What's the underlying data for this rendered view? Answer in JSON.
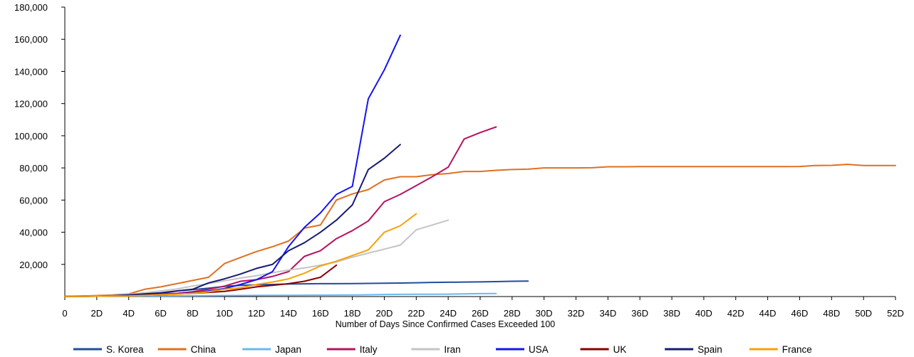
{
  "chart_data": {
    "type": "line",
    "xlabel": "Number of Days Since Confirmed Cases Exceeded 100",
    "ylabel": "",
    "xlim": [
      0,
      52
    ],
    "ylim": [
      0,
      180000
    ],
    "x_ticks": [
      "0",
      "2D",
      "4D",
      "6D",
      "8D",
      "10D",
      "12D",
      "14D",
      "16D",
      "18D",
      "20D",
      "22D",
      "24D",
      "26D",
      "28D",
      "30D",
      "32D",
      "34D",
      "36D",
      "38D",
      "40D",
      "42D",
      "44D",
      "46D",
      "48D",
      "50D",
      "52D"
    ],
    "y_ticks": [
      "20,000",
      "40,000",
      "60,000",
      "80,000",
      "100,000",
      "120,000",
      "140,000",
      "160,000",
      "180,000"
    ],
    "y_tick_values": [
      20000,
      40000,
      60000,
      80000,
      100000,
      120000,
      140000,
      160000,
      180000
    ],
    "grid": false,
    "legend_position": "bottom",
    "series": [
      {
        "name": "S. Korea",
        "color": "#1f4e9c",
        "values": [
          [
            0,
            100
          ],
          [
            1,
            200
          ],
          [
            2,
            350
          ],
          [
            3,
            600
          ],
          [
            4,
            900
          ],
          [
            5,
            1200
          ],
          [
            6,
            2000
          ],
          [
            7,
            3500
          ],
          [
            8,
            4300
          ],
          [
            9,
            5200
          ],
          [
            10,
            6300
          ],
          [
            11,
            7000
          ],
          [
            12,
            7300
          ],
          [
            13,
            7500
          ],
          [
            14,
            7800
          ],
          [
            15,
            7900
          ],
          [
            16,
            8000
          ],
          [
            17,
            8000
          ],
          [
            18,
            8100
          ],
          [
            19,
            8200
          ],
          [
            20,
            8300
          ],
          [
            21,
            8400
          ],
          [
            22,
            8600
          ],
          [
            23,
            8800
          ],
          [
            24,
            8900
          ],
          [
            25,
            9000
          ],
          [
            26,
            9100
          ],
          [
            27,
            9300
          ],
          [
            28,
            9500
          ],
          [
            29,
            9600
          ]
        ]
      },
      {
        "name": "China",
        "color": "#e07020",
        "values": [
          [
            0,
            100
          ],
          [
            1,
            300
          ],
          [
            2,
            600
          ],
          [
            3,
            1000
          ],
          [
            4,
            1700
          ],
          [
            5,
            4500
          ],
          [
            6,
            6000
          ],
          [
            7,
            8000
          ],
          [
            8,
            10000
          ],
          [
            9,
            12000
          ],
          [
            10,
            20500
          ],
          [
            11,
            24300
          ],
          [
            12,
            28000
          ],
          [
            13,
            31000
          ],
          [
            14,
            34500
          ],
          [
            15,
            42500
          ],
          [
            16,
            44500
          ],
          [
            17,
            60000
          ],
          [
            18,
            63800
          ],
          [
            19,
            66500
          ],
          [
            20,
            72500
          ],
          [
            21,
            74500
          ],
          [
            22,
            74500
          ],
          [
            23,
            75800
          ],
          [
            24,
            76500
          ],
          [
            25,
            77800
          ],
          [
            26,
            77800
          ],
          [
            27,
            78500
          ],
          [
            28,
            79000
          ],
          [
            29,
            79200
          ],
          [
            30,
            80000
          ],
          [
            31,
            80000
          ],
          [
            32,
            80000
          ],
          [
            33,
            80100
          ],
          [
            34,
            80700
          ],
          [
            35,
            80700
          ],
          [
            36,
            80800
          ],
          [
            37,
            80800
          ],
          [
            38,
            80800
          ],
          [
            39,
            80800
          ],
          [
            40,
            80800
          ],
          [
            41,
            80800
          ],
          [
            42,
            80800
          ],
          [
            43,
            80800
          ],
          [
            44,
            80800
          ],
          [
            45,
            80800
          ],
          [
            46,
            80900
          ],
          [
            47,
            81500
          ],
          [
            48,
            81600
          ],
          [
            49,
            82200
          ],
          [
            50,
            81500
          ],
          [
            51,
            81500
          ],
          [
            52,
            81500
          ]
        ]
      },
      {
        "name": "Japan",
        "color": "#6bb8f0",
        "values": [
          [
            0,
            100
          ],
          [
            2,
            200
          ],
          [
            4,
            300
          ],
          [
            6,
            400
          ],
          [
            8,
            500
          ],
          [
            10,
            600
          ],
          [
            12,
            700
          ],
          [
            14,
            800
          ],
          [
            16,
            900
          ],
          [
            18,
            1000
          ],
          [
            19,
            1100
          ],
          [
            20,
            1300
          ],
          [
            21,
            1350
          ],
          [
            22,
            1400
          ],
          [
            23,
            1450
          ],
          [
            24,
            1500
          ],
          [
            25,
            1700
          ],
          [
            26,
            1800
          ],
          [
            27,
            1900
          ]
        ]
      },
      {
        "name": "Italy",
        "color": "#b5135f",
        "values": [
          [
            0,
            100
          ],
          [
            1,
            150
          ],
          [
            2,
            300
          ],
          [
            3,
            500
          ],
          [
            4,
            800
          ],
          [
            5,
            1100
          ],
          [
            6,
            1700
          ],
          [
            7,
            2000
          ],
          [
            8,
            3000
          ],
          [
            9,
            4500
          ],
          [
            10,
            6500
          ],
          [
            11,
            9500
          ],
          [
            12,
            10500
          ],
          [
            13,
            12500
          ],
          [
            14,
            15500
          ],
          [
            15,
            25000
          ],
          [
            16,
            28500
          ],
          [
            17,
            36000
          ],
          [
            18,
            41000
          ],
          [
            19,
            47000
          ],
          [
            20,
            59000
          ],
          [
            21,
            63500
          ],
          [
            22,
            69000
          ],
          [
            23,
            74500
          ],
          [
            24,
            80500
          ],
          [
            25,
            98000
          ],
          [
            26,
            102000
          ],
          [
            27,
            105500
          ]
        ]
      },
      {
        "name": "Iran",
        "color": "#c4c4c4",
        "values": [
          [
            0,
            100
          ],
          [
            1,
            200
          ],
          [
            2,
            400
          ],
          [
            3,
            600
          ],
          [
            4,
            1500
          ],
          [
            5,
            2300
          ],
          [
            6,
            3500
          ],
          [
            7,
            4700
          ],
          [
            8,
            6500
          ],
          [
            9,
            8000
          ],
          [
            10,
            9800
          ],
          [
            11,
            11500
          ],
          [
            12,
            13000
          ],
          [
            13,
            14800
          ],
          [
            14,
            16500
          ],
          [
            15,
            17800
          ],
          [
            16,
            19500
          ],
          [
            17,
            21500
          ],
          [
            18,
            24500
          ],
          [
            19,
            27000
          ],
          [
            20,
            29500
          ],
          [
            21,
            32000
          ],
          [
            22,
            41500
          ],
          [
            23,
            44500
          ],
          [
            24,
            47500
          ]
        ]
      },
      {
        "name": "USA",
        "color": "#1414f0",
        "values": [
          [
            0,
            100
          ],
          [
            1,
            150
          ],
          [
            2,
            200
          ],
          [
            3,
            250
          ],
          [
            4,
            450
          ],
          [
            5,
            750
          ],
          [
            6,
            1000
          ],
          [
            7,
            1700
          ],
          [
            8,
            2200
          ],
          [
            9,
            3500
          ],
          [
            10,
            5000
          ],
          [
            11,
            7500
          ],
          [
            12,
            10500
          ],
          [
            13,
            15500
          ],
          [
            14,
            31000
          ],
          [
            15,
            43000
          ],
          [
            16,
            52000
          ],
          [
            17,
            63500
          ],
          [
            18,
            68500
          ],
          [
            19,
            123000
          ],
          [
            20,
            141000
          ],
          [
            21,
            162500
          ]
        ]
      },
      {
        "name": "UK",
        "color": "#8b0000",
        "values": [
          [
            0,
            100
          ],
          [
            1,
            150
          ],
          [
            2,
            250
          ],
          [
            3,
            400
          ],
          [
            4,
            600
          ],
          [
            5,
            800
          ],
          [
            6,
            1100
          ],
          [
            7,
            1500
          ],
          [
            8,
            2000
          ],
          [
            9,
            2600
          ],
          [
            10,
            3200
          ],
          [
            11,
            4500
          ],
          [
            12,
            6000
          ],
          [
            13,
            7000
          ],
          [
            14,
            8000
          ],
          [
            15,
            9500
          ],
          [
            16,
            12000
          ],
          [
            17,
            19500
          ]
        ]
      },
      {
        "name": "Spain",
        "color": "#161c73",
        "values": [
          [
            0,
            100
          ],
          [
            1,
            150
          ],
          [
            2,
            200
          ],
          [
            3,
            500
          ],
          [
            4,
            1000
          ],
          [
            5,
            1700
          ],
          [
            6,
            2300
          ],
          [
            7,
            3500
          ],
          [
            8,
            4500
          ],
          [
            9,
            8500
          ],
          [
            10,
            11000
          ],
          [
            11,
            14000
          ],
          [
            12,
            17500
          ],
          [
            13,
            20000
          ],
          [
            14,
            28500
          ],
          [
            15,
            33500
          ],
          [
            16,
            40000
          ],
          [
            17,
            47500
          ],
          [
            18,
            57000
          ],
          [
            19,
            79000
          ],
          [
            20,
            86000
          ],
          [
            21,
            94500
          ]
        ]
      },
      {
        "name": "France",
        "color": "#f7a10a",
        "values": [
          [
            0,
            100
          ],
          [
            1,
            150
          ],
          [
            2,
            200
          ],
          [
            3,
            300
          ],
          [
            4,
            400
          ],
          [
            5,
            700
          ],
          [
            6,
            1100
          ],
          [
            7,
            1500
          ],
          [
            8,
            2000
          ],
          [
            9,
            3000
          ],
          [
            10,
            4500
          ],
          [
            11,
            5500
          ],
          [
            12,
            7500
          ],
          [
            13,
            9000
          ],
          [
            14,
            11000
          ],
          [
            15,
            14500
          ],
          [
            16,
            19000
          ],
          [
            17,
            22000
          ],
          [
            18,
            25500
          ],
          [
            19,
            29000
          ],
          [
            20,
            40000
          ],
          [
            21,
            44000
          ],
          [
            22,
            51500
          ]
        ]
      }
    ]
  }
}
